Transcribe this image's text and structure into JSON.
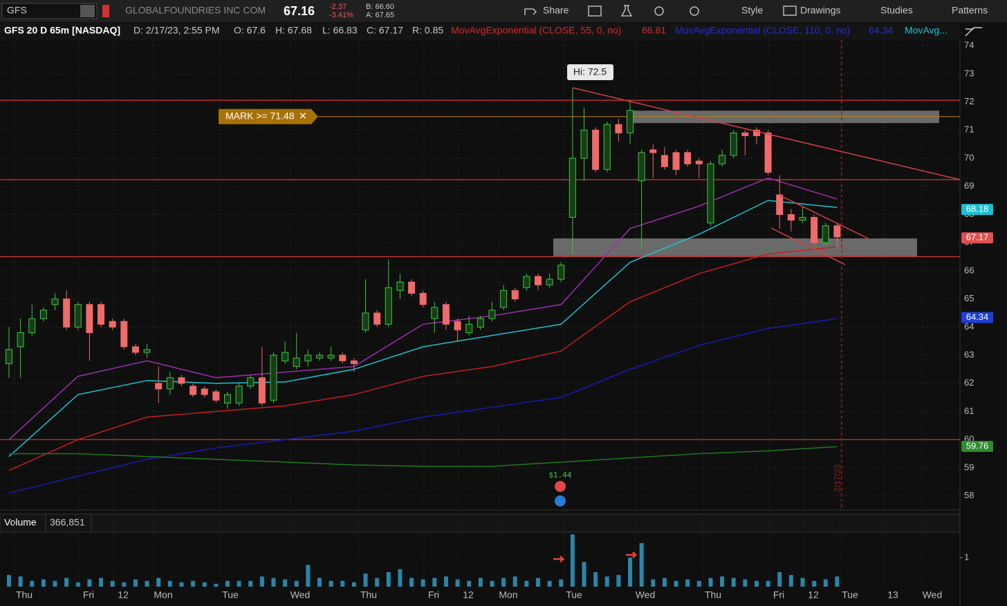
{
  "toolbar": {
    "symbol": "GFS",
    "company": "GLOBALFOUNDRIES INC COM",
    "last": "67.16",
    "change": "-2.37",
    "change_pct": "-3.41%",
    "bid": "B: 66.60",
    "ask": "A: 67.65",
    "buttons": [
      "Share",
      "Style",
      "Drawings",
      "Studies",
      "Patterns"
    ]
  },
  "info": {
    "title": "GFS 20 D 65m [NASDAQ]",
    "date": "D: 2/17/23, 2:55 PM",
    "open": "O: 67.6",
    "high": "H: 67.68",
    "low": "L: 66.83",
    "close": "C: 67.17",
    "range": "R: 0.85",
    "study1": "MovAvgExponential (CLOSE, 55, 0, no)",
    "study1_value": "66.81",
    "study2": "MovAvgExponential (CLOSE, 110, 0, no)",
    "study2_value": "64.34",
    "study3": "MovAvg..."
  },
  "chart_data": {
    "type": "candlestick",
    "ylim": [
      57.5,
      74.2
    ],
    "yticks": [
      58,
      59,
      60,
      61,
      62,
      63,
      64,
      65,
      66,
      67,
      68,
      69,
      70,
      71,
      72,
      73,
      74
    ],
    "grid": true,
    "up_color": "#3ec93e",
    "down_color": "#f06a6a",
    "xlabels": [
      "Thu",
      "Fri",
      "12",
      "Mon",
      "Tue",
      "Wed",
      "Thu",
      "Fri",
      "12",
      "Mon",
      "Tue",
      "Wed",
      "Thu",
      "Fri",
      "12",
      "Tue",
      "13",
      "Wed"
    ],
    "candles": [
      {
        "o": 62.7,
        "h": 64,
        "l": 62.2,
        "c": 63.2
      },
      {
        "o": 63.3,
        "h": 64.3,
        "l": 62.2,
        "c": 63.8
      },
      {
        "o": 63.8,
        "h": 64.8,
        "l": 63.7,
        "c": 64.3
      },
      {
        "o": 64.3,
        "h": 64.7,
        "l": 64.2,
        "c": 64.6
      },
      {
        "o": 64.8,
        "h": 65.2,
        "l": 64.6,
        "c": 65
      },
      {
        "o": 65,
        "h": 65.3,
        "l": 63.9,
        "c": 64
      },
      {
        "o": 64,
        "h": 64.9,
        "l": 63.9,
        "c": 64.8
      },
      {
        "o": 64.8,
        "h": 64.9,
        "l": 62.8,
        "c": 63.8
      },
      {
        "o": 64.8,
        "h": 64.9,
        "l": 64,
        "c": 64.1
      },
      {
        "o": 64.2,
        "h": 64.3,
        "l": 63.9,
        "c": 64
      },
      {
        "o": 64.2,
        "h": 64.3,
        "l": 63.2,
        "c": 63.3
      },
      {
        "o": 63.3,
        "h": 63.4,
        "l": 63,
        "c": 63.1
      },
      {
        "o": 63.1,
        "h": 63.4,
        "l": 62.9,
        "c": 63.2
      },
      {
        "o": 62,
        "h": 62.6,
        "l": 61.3,
        "c": 61.8
      },
      {
        "o": 61.8,
        "h": 62.4,
        "l": 61.6,
        "c": 62.2
      },
      {
        "o": 62.2,
        "h": 62.3,
        "l": 61.9,
        "c": 62
      },
      {
        "o": 61.9,
        "h": 62,
        "l": 61.5,
        "c": 61.6
      },
      {
        "o": 61.8,
        "h": 61.9,
        "l": 61.5,
        "c": 61.6
      },
      {
        "o": 61.7,
        "h": 61.8,
        "l": 61.3,
        "c": 61.4
      },
      {
        "o": 61.3,
        "h": 61.7,
        "l": 61.1,
        "c": 61.6
      },
      {
        "o": 61.3,
        "h": 62,
        "l": 61.2,
        "c": 61.9
      },
      {
        "o": 61.9,
        "h": 62.3,
        "l": 61.8,
        "c": 62.2
      },
      {
        "o": 62.2,
        "h": 63.3,
        "l": 61.2,
        "c": 61.3
      },
      {
        "o": 61.4,
        "h": 63.1,
        "l": 61.3,
        "c": 63
      },
      {
        "o": 62.8,
        "h": 63.5,
        "l": 62.7,
        "c": 63.1
      },
      {
        "o": 62.6,
        "h": 63.8,
        "l": 62.5,
        "c": 62.9
      },
      {
        "o": 62.8,
        "h": 63.2,
        "l": 62.6,
        "c": 63
      },
      {
        "o": 62.9,
        "h": 63.1,
        "l": 62.8,
        "c": 63
      },
      {
        "o": 62.9,
        "h": 63.3,
        "l": 62.8,
        "c": 63
      },
      {
        "o": 63,
        "h": 63.1,
        "l": 62.7,
        "c": 62.8
      },
      {
        "o": 62.8,
        "h": 62.9,
        "l": 62.4,
        "c": 62.7
      },
      {
        "o": 63.9,
        "h": 65.7,
        "l": 63.8,
        "c": 64.5
      },
      {
        "o": 64.5,
        "h": 64.6,
        "l": 64,
        "c": 64.1
      },
      {
        "o": 64.1,
        "h": 66.4,
        "l": 64,
        "c": 65.4
      },
      {
        "o": 65.3,
        "h": 65.9,
        "l": 65,
        "c": 65.6
      },
      {
        "o": 65.6,
        "h": 65.7,
        "l": 65.1,
        "c": 65.2
      },
      {
        "o": 65.2,
        "h": 65.3,
        "l": 64.7,
        "c": 64.8
      },
      {
        "o": 64.3,
        "h": 64.9,
        "l": 63.8,
        "c": 64.7
      },
      {
        "o": 64.8,
        "h": 64.9,
        "l": 63.9,
        "c": 64.1
      },
      {
        "o": 64.2,
        "h": 64.3,
        "l": 63.5,
        "c": 63.9
      },
      {
        "o": 63.8,
        "h": 64.4,
        "l": 63.7,
        "c": 64.1
      },
      {
        "o": 64,
        "h": 64.4,
        "l": 63.9,
        "c": 64.3
      },
      {
        "o": 64.3,
        "h": 64.9,
        "l": 64.2,
        "c": 64.6
      },
      {
        "o": 64.7,
        "h": 65.5,
        "l": 64.6,
        "c": 65.3
      },
      {
        "o": 65.3,
        "h": 65.4,
        "l": 64.9,
        "c": 65
      },
      {
        "o": 65.4,
        "h": 65.9,
        "l": 65.3,
        "c": 65.8
      },
      {
        "o": 65.8,
        "h": 65.9,
        "l": 65.3,
        "c": 65.5
      },
      {
        "o": 65.5,
        "h": 65.9,
        "l": 65.4,
        "c": 65.7
      },
      {
        "o": 65.7,
        "h": 66.3,
        "l": 65.6,
        "c": 66.2
      },
      {
        "o": 67.9,
        "h": 72.5,
        "l": 66.6,
        "c": 70
      },
      {
        "o": 70,
        "h": 71.8,
        "l": 69.2,
        "c": 71
      },
      {
        "o": 71,
        "h": 71.1,
        "l": 69.5,
        "c": 69.6
      },
      {
        "o": 69.6,
        "h": 71.3,
        "l": 69.5,
        "c": 71.2
      },
      {
        "o": 71.2,
        "h": 71.4,
        "l": 70.6,
        "c": 70.9
      },
      {
        "o": 70.9,
        "h": 72,
        "l": 70.5,
        "c": 71.7
      },
      {
        "o": 69.2,
        "h": 70.3,
        "l": 66.8,
        "c": 70.2
      },
      {
        "o": 70.3,
        "h": 70.5,
        "l": 69.3,
        "c": 70.2
      },
      {
        "o": 70.1,
        "h": 70.4,
        "l": 69.6,
        "c": 69.7
      },
      {
        "o": 70.2,
        "h": 70.3,
        "l": 69.4,
        "c": 69.6
      },
      {
        "o": 70.2,
        "h": 70.3,
        "l": 69.7,
        "c": 69.8
      },
      {
        "o": 69.9,
        "h": 70,
        "l": 69.3,
        "c": 69.8
      },
      {
        "o": 67.7,
        "h": 69.9,
        "l": 67.6,
        "c": 69.8
      },
      {
        "o": 69.8,
        "h": 70.3,
        "l": 69.7,
        "c": 70.1
      },
      {
        "o": 70.1,
        "h": 71,
        "l": 70,
        "c": 70.9
      },
      {
        "o": 70.9,
        "h": 71,
        "l": 70.1,
        "c": 70.8
      },
      {
        "o": 71,
        "h": 71.1,
        "l": 70.5,
        "c": 70.8
      },
      {
        "o": 70.9,
        "h": 71,
        "l": 69.4,
        "c": 69.5
      },
      {
        "o": 68.7,
        "h": 69.4,
        "l": 67.5,
        "c": 68
      },
      {
        "o": 68,
        "h": 68.2,
        "l": 67.4,
        "c": 67.8
      },
      {
        "o": 67.8,
        "h": 68.3,
        "l": 67.7,
        "c": 67.9
      },
      {
        "o": 67.9,
        "h": 68,
        "l": 66.9,
        "c": 67
      },
      {
        "o": 67,
        "h": 67.7,
        "l": 66.9,
        "c": 67.6
      },
      {
        "o": 67.6,
        "h": 67.7,
        "l": 66.8,
        "c": 67.2
      }
    ],
    "series": [
      {
        "color": "#9b2fae",
        "values": [
          60,
          62.25,
          62.8,
          62.2,
          62.4,
          62.6,
          64.1,
          64.4,
          64.8,
          67.5,
          68.3,
          69.3,
          68.55
        ]
      },
      {
        "color": "#1fc3cf",
        "values": [
          59.4,
          61.6,
          62.1,
          62,
          62.05,
          62.5,
          63.3,
          63.7,
          64.1,
          66.3,
          67.3,
          68.5,
          68.25
        ]
      },
      {
        "color": "#c81e1e",
        "values": [
          58.9,
          60,
          60.8,
          61,
          61.2,
          61.6,
          62.25,
          62.6,
          63.15,
          64.9,
          65.9,
          66.6,
          66.85
        ]
      },
      {
        "color": "#1a1ab8",
        "values": [
          58.1,
          58.7,
          59.3,
          59.7,
          60,
          60.3,
          60.8,
          61.15,
          61.5,
          62.5,
          63.35,
          63.95,
          64.3
        ]
      },
      {
        "color": "#1f7a1f",
        "values": [
          59.5,
          59.5,
          59.4,
          59.3,
          59.2,
          59.1,
          59.05,
          59.05,
          59.2,
          59.35,
          59.5,
          59.6,
          59.75
        ]
      }
    ],
    "price_labels": [
      {
        "value": 68.18,
        "color": "#19c1cf"
      },
      {
        "value": 67.17,
        "color": "#e05050"
      },
      {
        "value": 64.34,
        "color": "#1e3fd6"
      },
      {
        "value": 59.76,
        "color": "#2f8a2f"
      }
    ],
    "levels": [
      72.06,
      69.24,
      66.5,
      60
    ],
    "zones": [
      {
        "top": 71.69,
        "bottom": 71.25
      },
      {
        "top": 67.15,
        "bottom": 66.52
      }
    ],
    "mark": {
      "label": "MARK >= 71.48",
      "value": 71.48
    },
    "annotations": {
      "high": "Hi: 72.5",
      "dividend": "$1.44",
      "date": "2/17/23"
    },
    "volume": {
      "label": "Volume",
      "total": "366,851",
      "ylim": [
        0,
        1.88
      ],
      "yticks": [
        1
      ],
      "color": "#2a86a8",
      "values": [
        0.4,
        0.35,
        0.2,
        0.25,
        0.2,
        0.3,
        0.15,
        0.25,
        0.3,
        0.2,
        0.15,
        0.25,
        0.2,
        0.3,
        0.2,
        0.15,
        0.2,
        0.15,
        0.1,
        0.2,
        0.2,
        0.2,
        0.35,
        0.3,
        0.25,
        0.2,
        0.75,
        0.3,
        0.2,
        0.2,
        0.15,
        0.45,
        0.3,
        0.5,
        0.6,
        0.3,
        0.25,
        0.3,
        0.35,
        0.25,
        0.2,
        0.3,
        0.2,
        0.3,
        0.35,
        0.2,
        0.3,
        0.2,
        0.25,
        1.8,
        0.85,
        0.5,
        0.35,
        0.4,
        1,
        1.5,
        0.25,
        0.3,
        0.2,
        0.25,
        0.2,
        0.3,
        0.35,
        0.3,
        0.25,
        0.2,
        0.2,
        0.5,
        0.4,
        0.3,
        0.2,
        0.25,
        0.35
      ]
    }
  }
}
